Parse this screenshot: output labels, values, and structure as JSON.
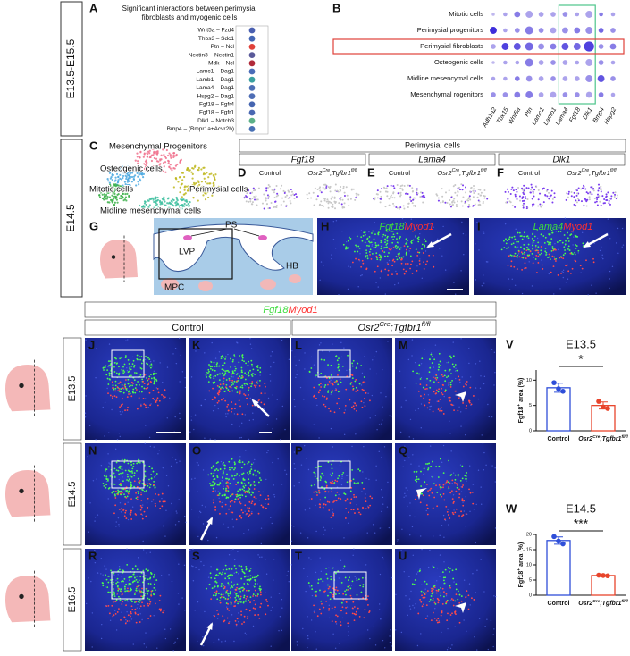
{
  "stage_labels": [
    "E13.5-E15.5",
    "E14.5"
  ],
  "panel_a": {
    "letter": "A",
    "title": [
      "Significant interactions between perimysial",
      "fibroblasts and myogenic cells"
    ],
    "interactions": [
      "Wnt5a  – Fzd4",
      "Thbs3  – Sdc1",
      "Ptn  – Ncl",
      "Nectin3  – Nectin1",
      "Mdk  – Ncl",
      "Lamc1  – Dag1",
      "Lamb1  – Dag1",
      "Lama4  – Dag1",
      "Hspg2  – Dag1",
      "Fgf18  – Fgfr4",
      "Fgf18  – Fgfr1",
      "Dlk1  – Notch3",
      "Bmp4  – (Bmpr1a+Acvr2b)"
    ],
    "dot_colors": [
      "#4a5fb0",
      "#4466b5",
      "#e0413a",
      "#5a5a9a",
      "#b02a3a",
      "#4a6cb8",
      "#3aa0a0",
      "#4d6fb5",
      "#4e6db5",
      "#4565b0",
      "#4a68b2",
      "#5cb088",
      "#4870b4"
    ]
  },
  "panel_b": {
    "letter": "B",
    "cell_types": [
      "Mitotic cells",
      "Perimysial progenitors",
      "Perimysial fibroblasts",
      "Osteogenic cells",
      "Midline mesencymal cells",
      "Mesenchymal rogenitors"
    ],
    "genes": [
      "Adh1a2",
      "Tbx15",
      "Wnt5a",
      "Ptn",
      "Lamc1",
      "Lamb1",
      "Lama4",
      "Fgf18",
      "Dlk1",
      "Bmp4",
      "Hspg2"
    ],
    "pct": [
      [
        0.1,
        0.2,
        0.4,
        0.5,
        0.3,
        0.3,
        0.3,
        0.2,
        0.5,
        0.2,
        0.2
      ],
      [
        0.5,
        0.2,
        0.3,
        0.6,
        0.3,
        0.4,
        0.4,
        0.4,
        0.5,
        0.3,
        0.3
      ],
      [
        0.3,
        0.5,
        0.5,
        0.6,
        0.4,
        0.4,
        0.5,
        0.5,
        0.8,
        0.3,
        0.4
      ],
      [
        0.1,
        0.2,
        0.2,
        0.6,
        0.3,
        0.3,
        0.3,
        0.2,
        0.5,
        0.3,
        0.2
      ],
      [
        0.2,
        0.2,
        0.3,
        0.4,
        0.3,
        0.3,
        0.3,
        0.3,
        0.5,
        0.5,
        0.3
      ],
      [
        0.3,
        0.3,
        0.4,
        0.5,
        0.3,
        0.4,
        0.3,
        0.3,
        0.4,
        0.3,
        0.2
      ]
    ],
    "expr": [
      [
        0.2,
        0.3,
        0.5,
        0.3,
        0.3,
        0.3,
        0.4,
        0.3,
        0.3,
        0.5,
        0.3
      ],
      [
        0.9,
        0.3,
        0.4,
        0.5,
        0.4,
        0.3,
        0.4,
        0.5,
        0.4,
        0.6,
        0.4
      ],
      [
        0.3,
        0.8,
        0.7,
        0.6,
        0.4,
        0.5,
        0.7,
        0.6,
        0.8,
        0.4,
        0.5
      ],
      [
        0.2,
        0.3,
        0.3,
        0.5,
        0.3,
        0.4,
        0.3,
        0.3,
        0.3,
        0.4,
        0.3
      ],
      [
        0.3,
        0.3,
        0.5,
        0.4,
        0.3,
        0.4,
        0.3,
        0.3,
        0.4,
        0.7,
        0.4
      ],
      [
        0.4,
        0.4,
        0.5,
        0.5,
        0.3,
        0.3,
        0.4,
        0.4,
        0.3,
        0.5,
        0.3
      ]
    ],
    "low_color": "#e4def4",
    "high_color": "#2a1ad8",
    "highlight_genes_color": "#4cc48a",
    "highlight_row_color": "#e0413a"
  },
  "panel_c": {
    "letter": "C",
    "clusters": [
      "Mesenchymal Progenitors",
      "Osteogenic cells",
      "Mitotic cells",
      "Perimysial cells",
      "Midline mesenchymal cells"
    ],
    "cluster_colors": [
      "#f0708c",
      "#4aa8e0",
      "#3cb04a",
      "#c0b820",
      "#40c0a0"
    ]
  },
  "expression": {
    "title": "Perimysial cells",
    "genes": [
      "Fgf18",
      "Lama4",
      "Dlk1"
    ],
    "letters": [
      "D",
      "E",
      "F"
    ],
    "control": "Control",
    "mutant": [
      "Osr2",
      "Cre",
      ";Tgfbr1",
      "fl/fl"
    ],
    "gene_color": "#7a3cf0"
  },
  "panel_g": {
    "letters": [
      "G",
      "H",
      "I"
    ],
    "labels": [
      "PS",
      "LVP",
      "HB",
      "MPC"
    ],
    "h_genes": [
      "Fgf18",
      "Myod1"
    ],
    "i_genes": [
      "Lama4",
      "Myod1"
    ],
    "gene_colors": [
      "#3ddc3d",
      "#ff3030"
    ]
  },
  "sections": {
    "genes": [
      "Fgf18",
      "Myod1"
    ],
    "control": "Control",
    "mutant": [
      "Osr2",
      "Cre",
      ";Tgfbr1",
      "fl/fl"
    ],
    "stages": [
      "E13.5",
      "E14.5",
      "E16.5"
    ],
    "letters": [
      [
        "J",
        "K",
        "L",
        "M"
      ],
      [
        "N",
        "O",
        "P",
        "Q"
      ],
      [
        "R",
        "S",
        "T",
        "U"
      ]
    ]
  },
  "chart_data": [
    {
      "type": "bar",
      "letter": "V",
      "title": "E13.5",
      "ylabel": [
        "Fgf18",
        "+",
        " area (%)"
      ],
      "categories": [
        "Control",
        [
          "Osr2",
          "Cre",
          ";Tgfbr1",
          "fl/fl"
        ]
      ],
      "values": [
        8.5,
        5.0
      ],
      "errors": [
        0.9,
        0.7
      ],
      "points": [
        [
          9.5,
          8.3,
          7.8
        ],
        [
          5.8,
          4.7,
          4.4
        ]
      ],
      "colors": [
        "#2f4fd9",
        "#e8452c"
      ],
      "ylim": [
        0,
        12
      ],
      "yticks": [
        0,
        5,
        10
      ],
      "significance": "*"
    },
    {
      "type": "bar",
      "letter": "W",
      "title": "E14.5",
      "ylabel": [
        "Fgf18",
        "+",
        " area (%)"
      ],
      "categories": [
        "Control",
        [
          "Osr2",
          "Cre",
          ";Tgfbr1",
          "fl/fl"
        ]
      ],
      "values": [
        18.0,
        6.5
      ],
      "errors": [
        1.2,
        0.1
      ],
      "points": [
        [
          19.3,
          17.8,
          16.9
        ],
        [
          6.6,
          6.5,
          6.4
        ]
      ],
      "colors": [
        "#2f4fd9",
        "#e8452c"
      ],
      "ylim": [
        0,
        20
      ],
      "yticks": [
        0,
        5,
        10,
        15,
        20
      ],
      "significance": "***"
    }
  ]
}
